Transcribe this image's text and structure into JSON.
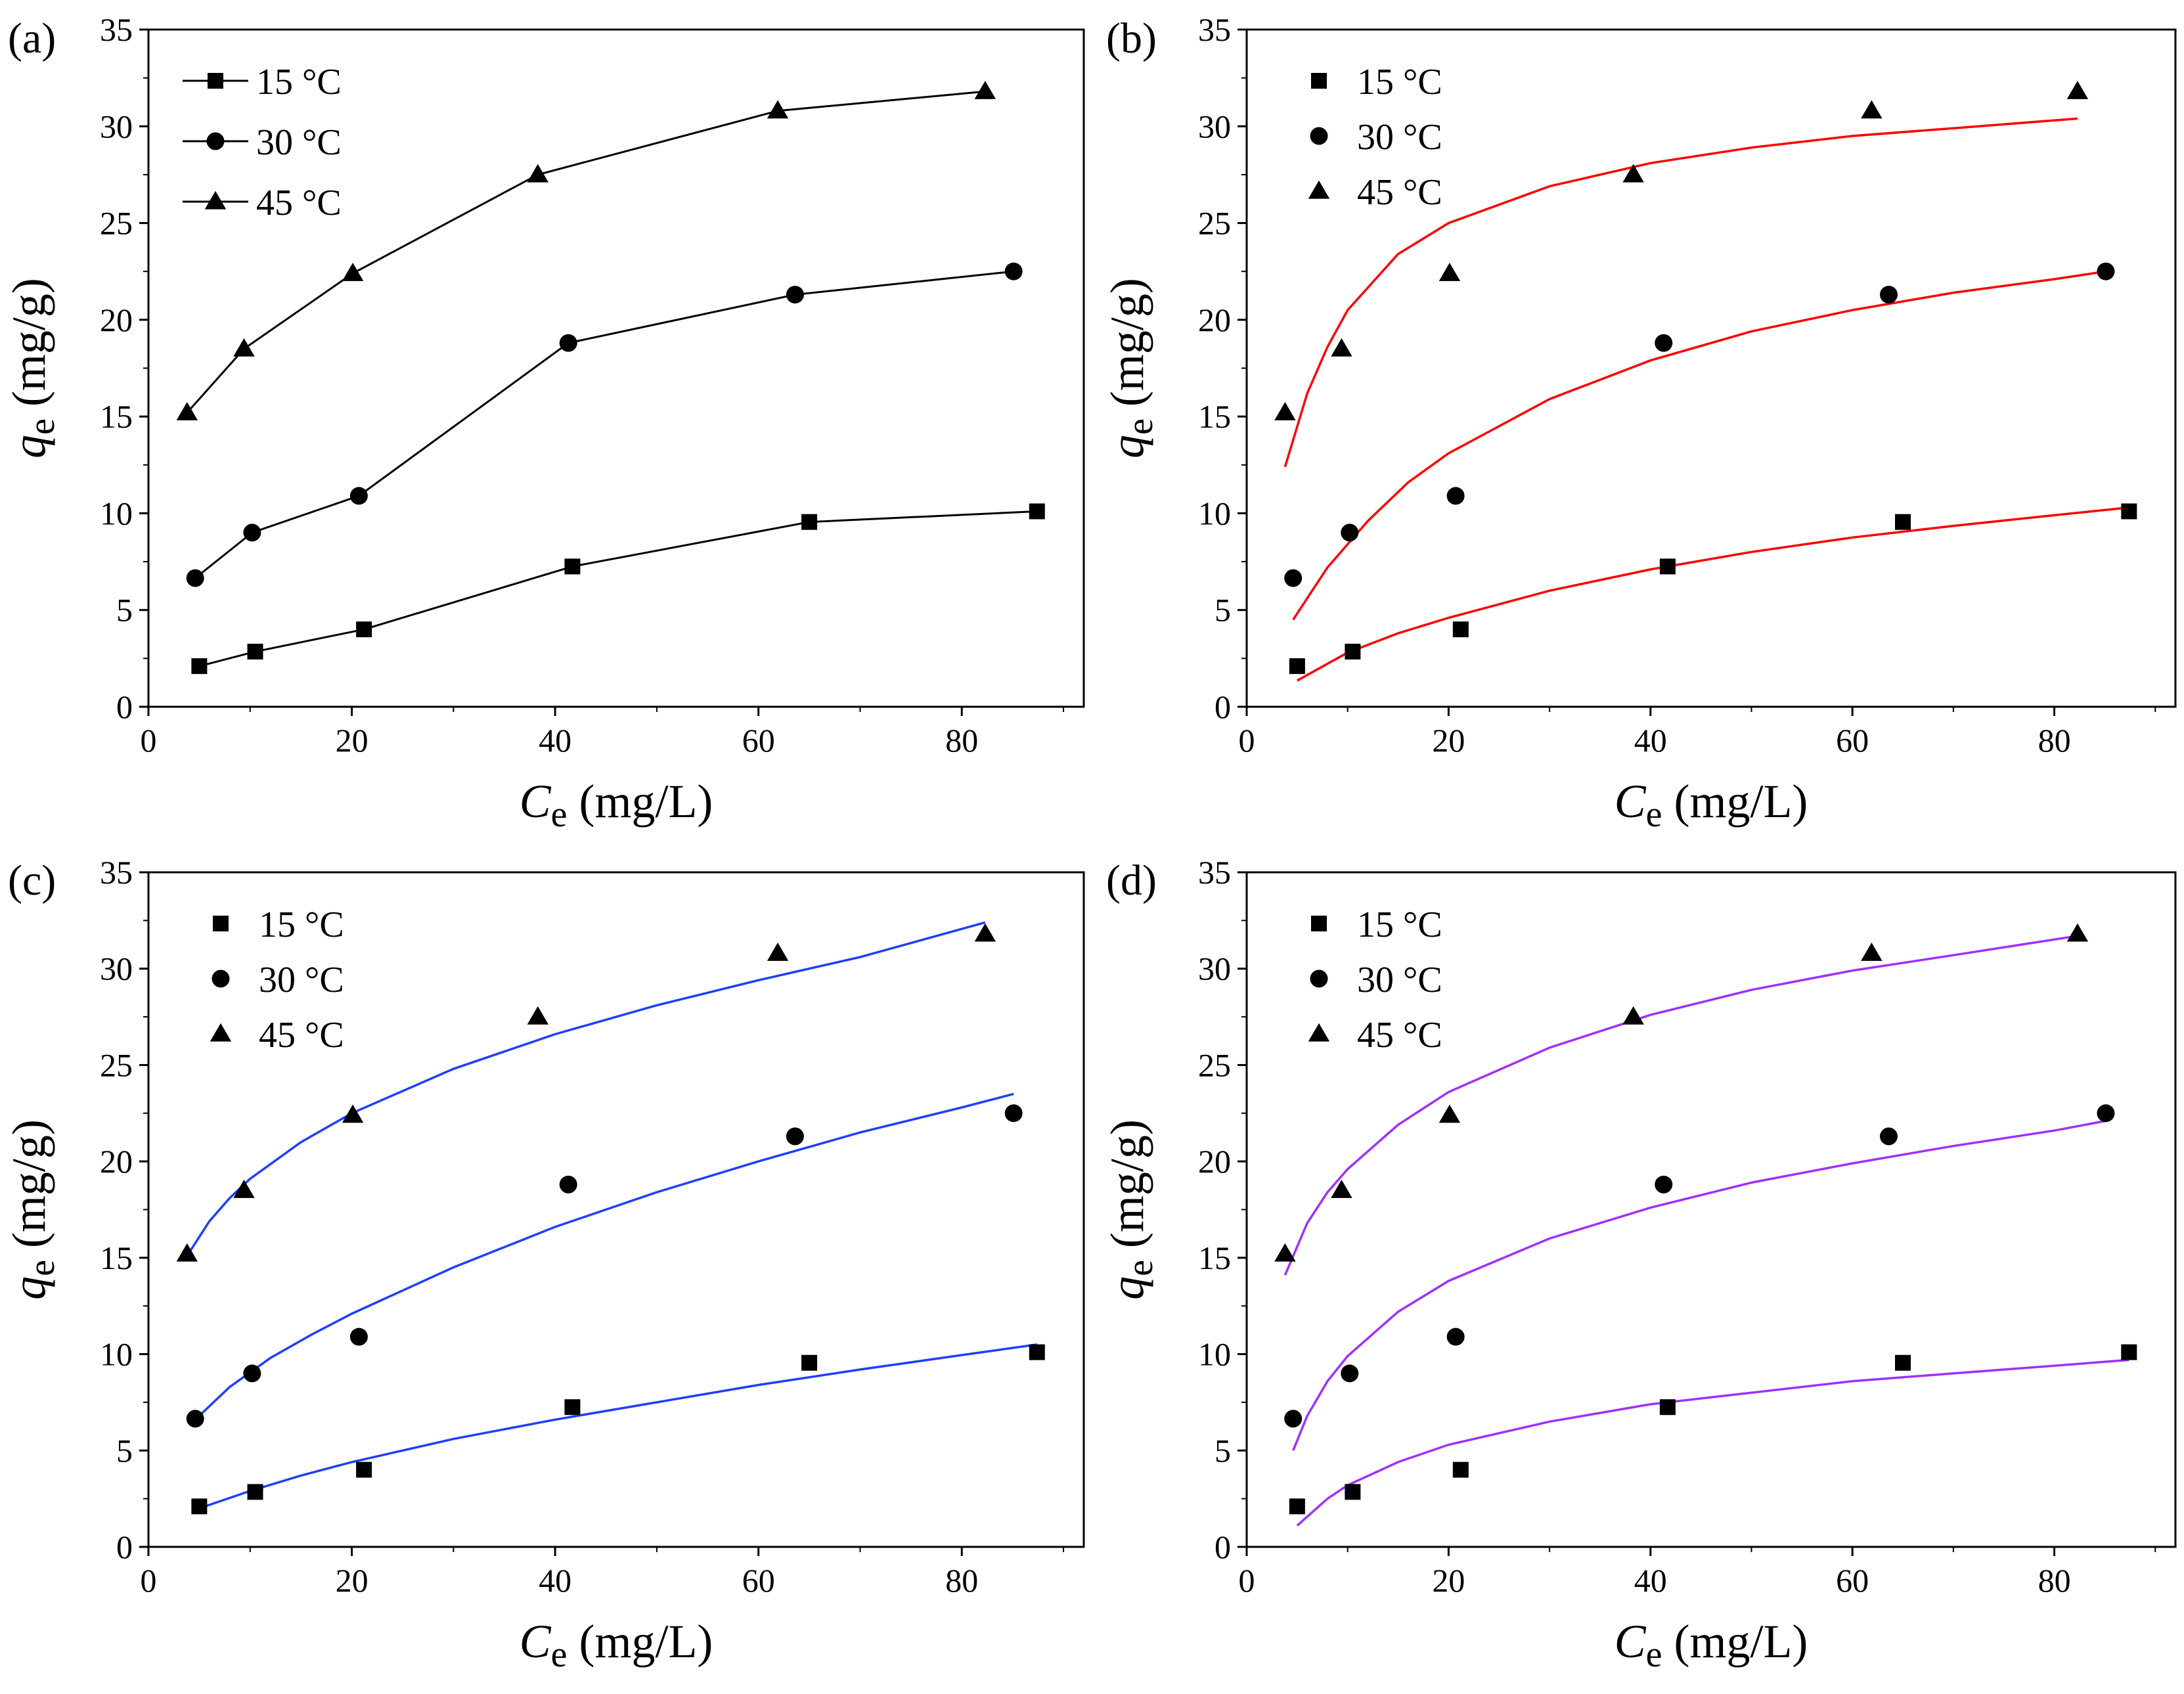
{
  "figure": {
    "axis_labels": {
      "x_main": "C",
      "x_sub": "e",
      "x_unit": " (mg/L)",
      "y_main": "q",
      "y_sub": "e",
      "y_unit": " (mg/g)"
    },
    "series_names": [
      "15 °C",
      "30 °C",
      "45 °C"
    ],
    "marker_shapes": [
      "square",
      "circle",
      "triangle"
    ]
  },
  "chart_data": [
    {
      "panel": "(a)",
      "type": "line",
      "xlim": [
        0,
        92
      ],
      "ylim": [
        0,
        35
      ],
      "xticks": [
        0,
        20,
        40,
        60,
        80
      ],
      "yticks": [
        0,
        5,
        10,
        15,
        20,
        25,
        30,
        35
      ],
      "legend_placement": "top-left",
      "connect_points": true,
      "fit_color": null,
      "series": [
        {
          "name": "15 °C",
          "marker": "square",
          "x": [
            5.0,
            10.5,
            21.2,
            41.7,
            65.0,
            87.4
          ],
          "y": [
            2.1,
            2.85,
            4.0,
            7.25,
            9.55,
            10.1
          ]
        },
        {
          "name": "30 °C",
          "marker": "circle",
          "x": [
            4.6,
            10.2,
            20.7,
            41.3,
            63.6,
            85.1
          ],
          "y": [
            6.65,
            9.0,
            10.9,
            18.8,
            21.3,
            22.5
          ]
        },
        {
          "name": "45 °C",
          "marker": "triangle",
          "x": [
            3.8,
            9.4,
            20.1,
            38.3,
            61.9,
            82.3
          ],
          "y": [
            15.2,
            18.5,
            22.4,
            27.5,
            30.8,
            31.8
          ]
        }
      ]
    },
    {
      "panel": "(b)",
      "type": "scatter",
      "xlim": [
        0,
        92
      ],
      "ylim": [
        0,
        35
      ],
      "xticks": [
        0,
        20,
        40,
        60,
        80
      ],
      "yticks": [
        0,
        5,
        10,
        15,
        20,
        25,
        30,
        35
      ],
      "legend_placement": "top-left",
      "connect_points": false,
      "fit_color": "#ff0000",
      "series": [
        {
          "name": "15 °C",
          "marker": "square",
          "x": [
            5.0,
            10.5,
            21.2,
            41.7,
            65.0,
            87.4
          ],
          "y": [
            2.1,
            2.85,
            4.0,
            7.25,
            9.55,
            10.1
          ],
          "fit": {
            "x": [
              5,
              10,
              15,
              20,
              30,
              40,
              50,
              60,
              70,
              80,
              87.4
            ],
            "y": [
              1.35,
              2.8,
              3.8,
              4.6,
              6.0,
              7.1,
              8.0,
              8.75,
              9.35,
              9.9,
              10.3
            ]
          }
        },
        {
          "name": "30 °C",
          "marker": "circle",
          "x": [
            4.6,
            10.2,
            20.7,
            41.3,
            63.6,
            85.1
          ],
          "y": [
            6.65,
            9.0,
            10.9,
            18.8,
            21.3,
            22.5
          ],
          "fit": {
            "x": [
              4.6,
              8,
              12,
              16,
              20,
              30,
              40,
              50,
              60,
              70,
              80,
              85.1
            ],
            "y": [
              4.5,
              7.2,
              9.6,
              11.6,
              13.1,
              15.9,
              17.9,
              19.4,
              20.5,
              21.4,
              22.1,
              22.5
            ]
          }
        },
        {
          "name": "45 °C",
          "marker": "triangle",
          "x": [
            3.8,
            9.4,
            20.1,
            38.3,
            61.9,
            82.3
          ],
          "y": [
            15.2,
            18.5,
            22.4,
            27.5,
            30.8,
            31.8
          ],
          "fit": {
            "x": [
              3.8,
              6,
              8,
              10,
              15,
              20,
              30,
              40,
              50,
              60,
              70,
              82.3
            ],
            "y": [
              12.4,
              16.2,
              18.6,
              20.5,
              23.4,
              25.0,
              26.9,
              28.1,
              28.9,
              29.5,
              29.9,
              30.4
            ]
          }
        }
      ]
    },
    {
      "panel": "(c)",
      "type": "scatter",
      "xlim": [
        0,
        92
      ],
      "ylim": [
        0,
        35
      ],
      "xticks": [
        0,
        20,
        40,
        60,
        80
      ],
      "yticks": [
        0,
        5,
        10,
        15,
        20,
        25,
        30,
        35
      ],
      "legend_placement": "top-left",
      "connect_points": false,
      "fit_color": "#1f3fff",
      "series": [
        {
          "name": "15 °C",
          "marker": "square",
          "x": [
            5.0,
            10.5,
            21.2,
            41.7,
            65.0,
            87.4
          ],
          "y": [
            2.1,
            2.85,
            4.0,
            7.25,
            9.55,
            10.1
          ],
          "fit": {
            "x": [
              5,
              10,
              15,
              20,
              30,
              40,
              50,
              60,
              70,
              80,
              87.4
            ],
            "y": [
              2.0,
              2.9,
              3.7,
              4.4,
              5.6,
              6.6,
              7.5,
              8.4,
              9.2,
              9.95,
              10.5
            ]
          }
        },
        {
          "name": "30 °C",
          "marker": "circle",
          "x": [
            4.6,
            10.2,
            20.7,
            41.3,
            63.6,
            85.1
          ],
          "y": [
            6.65,
            9.0,
            10.9,
            18.8,
            21.3,
            22.5
          ],
          "fit": {
            "x": [
              4.6,
              8,
              12,
              16,
              20,
              30,
              40,
              50,
              60,
              70,
              80,
              85.1
            ],
            "y": [
              6.6,
              8.3,
              9.8,
              11.0,
              12.1,
              14.5,
              16.6,
              18.4,
              20.0,
              21.5,
              22.8,
              23.5
            ]
          }
        },
        {
          "name": "45 °C",
          "marker": "triangle",
          "x": [
            3.8,
            9.4,
            20.1,
            38.3,
            61.9,
            82.3
          ],
          "y": [
            15.2,
            18.5,
            22.4,
            27.5,
            30.8,
            31.8
          ],
          "fit": {
            "x": [
              3.8,
              6,
              8,
              10,
              15,
              20,
              30,
              40,
              50,
              60,
              70,
              82.3
            ],
            "y": [
              15.1,
              16.9,
              18.1,
              19.1,
              21.0,
              22.5,
              24.8,
              26.6,
              28.1,
              29.4,
              30.6,
              32.4
            ]
          }
        }
      ]
    },
    {
      "panel": "(d)",
      "type": "scatter",
      "xlim": [
        0,
        92
      ],
      "ylim": [
        0,
        35
      ],
      "xticks": [
        0,
        20,
        40,
        60,
        80
      ],
      "yticks": [
        0,
        5,
        10,
        15,
        20,
        25,
        30,
        35
      ],
      "legend_placement": "top-left",
      "connect_points": false,
      "fit_color": "#a030ff",
      "series": [
        {
          "name": "15 °C",
          "marker": "square",
          "x": [
            5.0,
            10.5,
            21.2,
            41.7,
            65.0,
            87.4
          ],
          "y": [
            2.1,
            2.85,
            4.0,
            7.25,
            9.55,
            10.1
          ],
          "fit": {
            "x": [
              5,
              8,
              10,
              15,
              20,
              30,
              40,
              50,
              60,
              70,
              80,
              87.4
            ],
            "y": [
              1.1,
              2.5,
              3.2,
              4.4,
              5.3,
              6.5,
              7.4,
              8.0,
              8.6,
              9.0,
              9.4,
              9.7
            ]
          }
        },
        {
          "name": "30 °C",
          "marker": "circle",
          "x": [
            4.6,
            10.2,
            20.7,
            41.3,
            63.6,
            85.1
          ],
          "y": [
            6.65,
            9.0,
            10.9,
            18.8,
            21.3,
            22.5
          ],
          "fit": {
            "x": [
              4.6,
              6,
              8,
              10,
              15,
              20,
              30,
              40,
              50,
              60,
              70,
              80,
              85.1
            ],
            "y": [
              5.0,
              6.8,
              8.6,
              9.9,
              12.2,
              13.8,
              16.0,
              17.6,
              18.9,
              19.9,
              20.8,
              21.6,
              22.1
            ]
          }
        },
        {
          "name": "45 °C",
          "marker": "triangle",
          "x": [
            3.8,
            9.4,
            20.1,
            38.3,
            61.9,
            82.3
          ],
          "y": [
            15.2,
            18.5,
            22.4,
            27.5,
            30.8,
            31.8
          ],
          "fit": {
            "x": [
              3.8,
              6,
              8,
              10,
              15,
              20,
              30,
              40,
              50,
              60,
              70,
              82.3
            ],
            "y": [
              14.1,
              16.8,
              18.4,
              19.6,
              21.9,
              23.6,
              25.9,
              27.6,
              28.9,
              29.9,
              30.7,
              31.7
            ]
          }
        }
      ]
    }
  ]
}
